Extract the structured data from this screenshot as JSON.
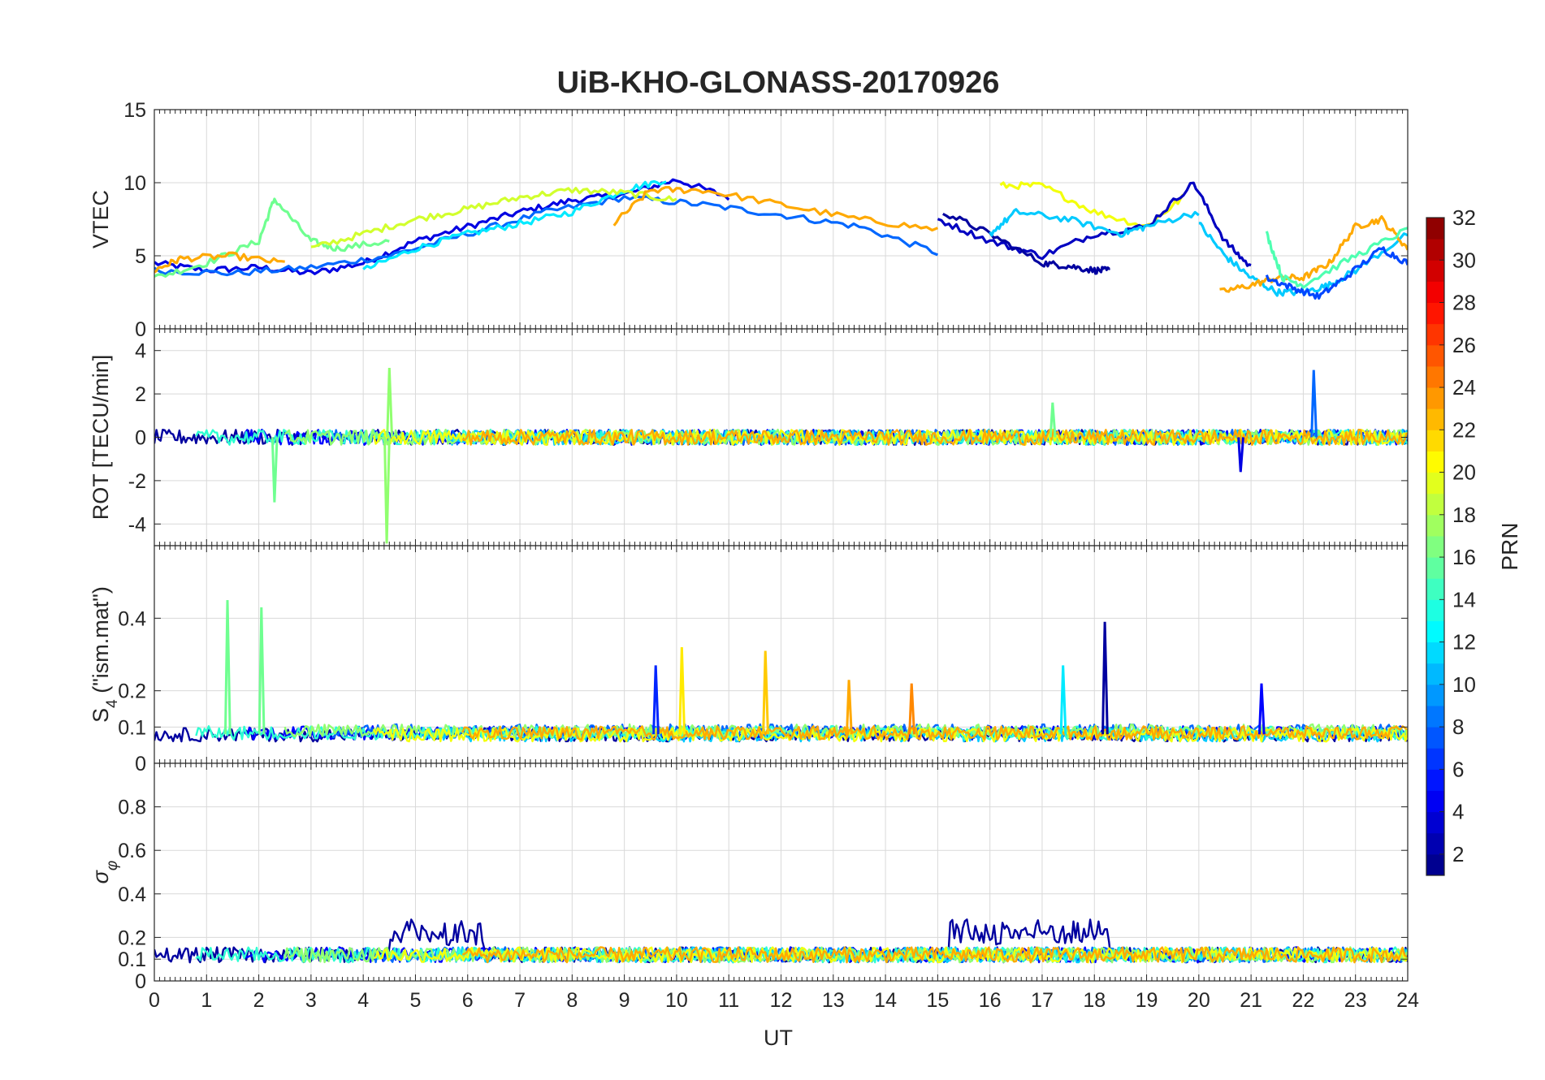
{
  "title": "UiB-KHO-GLONASS-20170926",
  "colors": {
    "axis": "#262626",
    "grid": "#d9d9d9",
    "prn_colormap": "jet"
  },
  "chart_data": [
    {
      "type": "line",
      "panel": "vtec",
      "ylabel": "VTEC",
      "ylim": [
        0,
        15
      ],
      "yticks": [
        0,
        5,
        10,
        15
      ],
      "xlim": [
        0,
        24
      ],
      "grid": true,
      "description_series": "multiple PRN tracks, colored by PRN",
      "series": [
        {
          "prn": 4,
          "x": [
            0,
            1,
            2,
            3,
            4,
            5,
            6,
            7,
            8,
            9,
            10,
            11
          ],
          "y": [
            4.5,
            4.0,
            4.2,
            3.8,
            4.5,
            6.0,
            7.0,
            8.0,
            8.8,
            9.2,
            10.2,
            9.0
          ]
        },
        {
          "prn": 8,
          "x": [
            0,
            1.5,
            3,
            4.5,
            6,
            7.5,
            9,
            10.5,
            12,
            13.5,
            15
          ],
          "y": [
            4.0,
            3.8,
            4.2,
            5.0,
            6.5,
            8.0,
            9.0,
            8.5,
            7.8,
            7.0,
            5.2
          ]
        },
        {
          "prn": 12,
          "x": [
            4,
            5,
            6,
            7,
            8,
            9,
            9.8
          ],
          "y": [
            4.0,
            5.5,
            6.5,
            7.2,
            8.0,
            9.5,
            10.2
          ]
        },
        {
          "prn": 16,
          "x": [
            0,
            1,
            2,
            2.3,
            3,
            3.5,
            4.5
          ],
          "y": [
            3.5,
            4.5,
            6.0,
            8.9,
            6.0,
            5.5,
            6.0
          ]
        },
        {
          "prn": 19,
          "x": [
            3,
            4,
            5,
            6,
            7,
            8,
            9,
            10
          ],
          "y": [
            5.5,
            6.5,
            7.5,
            8.2,
            9.0,
            9.5,
            9.3,
            8.8
          ]
        },
        {
          "prn": 23,
          "x": [
            0,
            0.5,
            1.5,
            2.5
          ],
          "y": [
            4.0,
            4.8,
            5.0,
            4.5
          ]
        },
        {
          "prn": 23,
          "x": [
            8.8,
            9.5,
            10.5,
            12,
            13.5,
            15
          ],
          "y": [
            7.2,
            9.5,
            9.5,
            8.5,
            7.5,
            6.8
          ]
        },
        {
          "prn": 20,
          "x": [
            16.2,
            17,
            18,
            19,
            19.7
          ],
          "y": [
            9.8,
            9.8,
            8.0,
            7.0,
            9.0
          ]
        },
        {
          "prn": 3,
          "x": [
            15,
            16,
            17,
            18,
            19,
            19.9,
            20.5,
            21
          ],
          "y": [
            7.5,
            6.0,
            5.0,
            6.5,
            7.0,
            10.0,
            6.0,
            4.2
          ]
        },
        {
          "prn": 2,
          "x": [
            15.1,
            16,
            17,
            17.5,
            18,
            18.3
          ],
          "y": [
            8.0,
            6.5,
            4.5,
            4.3,
            4.0,
            4.0
          ]
        },
        {
          "prn": 11,
          "x": [
            16,
            16.5,
            17.5,
            18.5,
            19,
            20
          ],
          "y": [
            6.5,
            8.0,
            7.5,
            6.5,
            7.0,
            8.0
          ]
        },
        {
          "prn": 11,
          "x": [
            20,
            20.5,
            21,
            21.5,
            22,
            22.5,
            23,
            24
          ],
          "y": [
            7.2,
            5.0,
            3.5,
            2.5,
            2.5,
            3.0,
            4.0,
            6.5
          ]
        },
        {
          "prn": 23,
          "x": [
            20.4,
            21,
            21.5,
            22,
            22.5,
            23,
            23.5,
            24
          ],
          "y": [
            2.5,
            3.0,
            3.5,
            3.5,
            4.5,
            7.0,
            7.5,
            5.5
          ]
        },
        {
          "prn": 7,
          "x": [
            21.3,
            21.8,
            22.3,
            22.8,
            23.5,
            24
          ],
          "y": [
            3.5,
            2.8,
            2.2,
            3.5,
            5.5,
            4.5
          ]
        },
        {
          "prn": 15,
          "x": [
            21.3,
            21.6,
            22,
            23,
            24
          ],
          "y": [
            6.5,
            3.5,
            3.0,
            5.0,
            6.8
          ]
        }
      ]
    },
    {
      "type": "line",
      "panel": "rot",
      "ylabel": "ROT [TECU/min]",
      "ylim": [
        -5,
        5
      ],
      "yticks": [
        -4,
        -2,
        0,
        2,
        4
      ],
      "xlim": [
        0,
        24
      ],
      "grid": true,
      "spikes": [
        {
          "prn": 16,
          "x": 2.3,
          "y": -3.0
        },
        {
          "prn": 17,
          "x": 4.5,
          "y": 3.2
        },
        {
          "prn": 17,
          "x": 4.45,
          "y": -4.9
        },
        {
          "prn": 8,
          "x": 22.2,
          "y": 3.1
        },
        {
          "prn": 4,
          "x": 20.8,
          "y": -1.6
        },
        {
          "prn": 16,
          "x": 17.2,
          "y": 1.6
        }
      ]
    },
    {
      "type": "line",
      "panel": "s4",
      "ylabel": "S4 (\"ism.mat\")",
      "ylim": [
        0,
        0.6
      ],
      "yticks": [
        0,
        0.1,
        0.2,
        0.4
      ],
      "ytick_labels": [
        "0",
        "0.1",
        "0.2",
        "0.4"
      ],
      "xlim": [
        0,
        24
      ],
      "grid": true,
      "spikes": [
        {
          "prn": 16,
          "x": 1.4,
          "y": 0.45
        },
        {
          "prn": 16,
          "x": 2.05,
          "y": 0.43
        },
        {
          "prn": 21,
          "x": 10.1,
          "y": 0.32
        },
        {
          "prn": 22,
          "x": 11.7,
          "y": 0.31
        },
        {
          "prn": 2,
          "x": 18.2,
          "y": 0.39
        },
        {
          "prn": 12,
          "x": 17.4,
          "y": 0.27
        },
        {
          "prn": 6,
          "x": 9.6,
          "y": 0.27
        },
        {
          "prn": 23,
          "x": 13.3,
          "y": 0.23
        },
        {
          "prn": 24,
          "x": 14.5,
          "y": 0.22
        },
        {
          "prn": 5,
          "x": 21.2,
          "y": 0.22
        }
      ]
    },
    {
      "type": "line",
      "panel": "sigma_phi",
      "ylabel": "σφ",
      "ylim": [
        0,
        1
      ],
      "yticks": [
        0,
        0.1,
        0.2,
        0.4,
        0.6,
        0.8
      ],
      "ytick_labels": [
        "0",
        "0.1",
        "0.2",
        "0.4",
        "0.6",
        "0.8"
      ],
      "xlim": [
        0,
        24
      ],
      "xlabel": "UT",
      "xticks": [
        0,
        1,
        2,
        3,
        4,
        5,
        6,
        7,
        8,
        9,
        10,
        11,
        12,
        13,
        14,
        15,
        16,
        17,
        18,
        19,
        20,
        21,
        22,
        23,
        24
      ],
      "grid": true
    }
  ],
  "colorbar": {
    "label": "PRN",
    "ticks": [
      2,
      4,
      6,
      8,
      10,
      12,
      14,
      16,
      18,
      20,
      22,
      24,
      26,
      28,
      30,
      32
    ],
    "range": [
      1,
      32
    ]
  }
}
